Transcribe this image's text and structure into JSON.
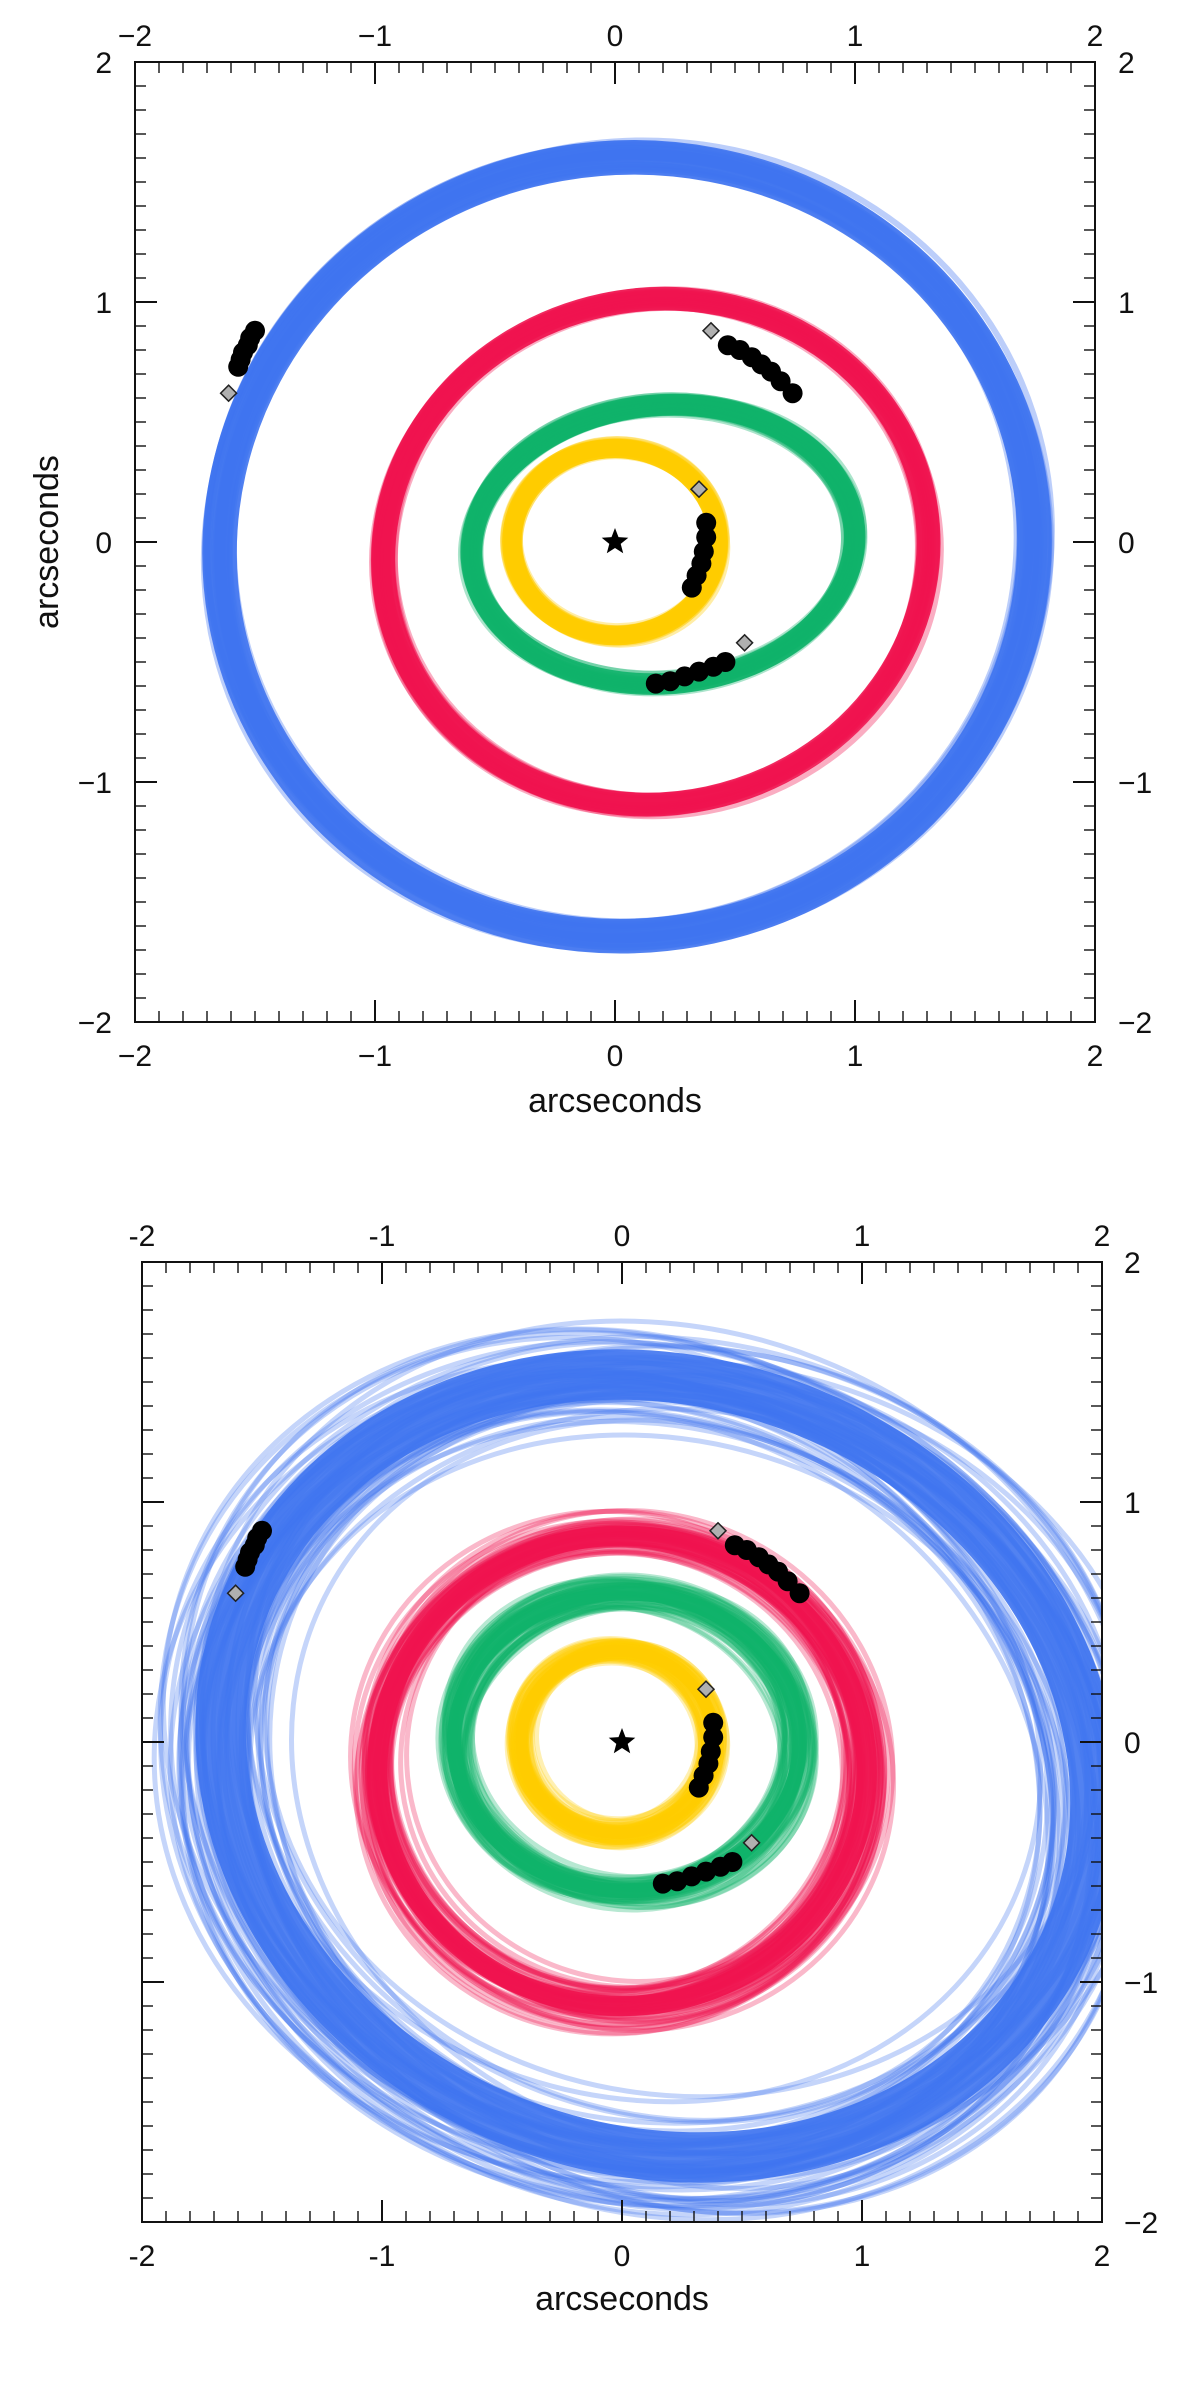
{
  "chart_data": [
    {
      "type": "scatter",
      "title": "",
      "xlabel": "arcseconds",
      "ylabel": "arcseconds",
      "xlim": [
        -2,
        2
      ],
      "ylim": [
        -2,
        2
      ],
      "ticks": [
        "−2",
        "−1",
        "0",
        "1",
        "2"
      ],
      "right_ticks": [
        "2",
        "1",
        "0",
        "−1",
        "−2"
      ],
      "star": {
        "x": 0,
        "y": 0
      },
      "colors": {
        "b": "#3f74f0",
        "c": "#f0134f",
        "d": "#0fb26a",
        "e": "#ffcc00"
      },
      "orbits": [
        {
          "planet": "b",
          "color": "#3f74f0",
          "cx": 0.05,
          "cy": -0.02,
          "rx": 1.7,
          "ry": 1.62,
          "tilt": -10,
          "width": 0.16
        },
        {
          "planet": "c",
          "color": "#f0134f",
          "cx": 0.17,
          "cy": -0.04,
          "rx": 1.14,
          "ry": 1.05,
          "tilt": -12,
          "width": 0.11
        },
        {
          "planet": "d",
          "color": "#0fb26a",
          "cx": 0.2,
          "cy": -0.01,
          "rx": 0.8,
          "ry": 0.58,
          "tilt": -5,
          "width": 0.1
        },
        {
          "planet": "e",
          "color": "#ffcc00",
          "cx": 0.0,
          "cy": 0.0,
          "rx": 0.43,
          "ry": 0.39,
          "tilt": 0,
          "width": 0.09
        }
      ],
      "points": [
        {
          "x": -1.5,
          "y": 0.88
        },
        {
          "x": -1.52,
          "y": 0.85
        },
        {
          "x": -1.53,
          "y": 0.82
        },
        {
          "x": -1.55,
          "y": 0.79
        },
        {
          "x": -1.56,
          "y": 0.76
        },
        {
          "x": -1.57,
          "y": 0.73
        },
        {
          "x": 0.47,
          "y": 0.82
        },
        {
          "x": 0.52,
          "y": 0.8
        },
        {
          "x": 0.57,
          "y": 0.77
        },
        {
          "x": 0.61,
          "y": 0.74
        },
        {
          "x": 0.65,
          "y": 0.71
        },
        {
          "x": 0.69,
          "y": 0.67
        },
        {
          "x": 0.74,
          "y": 0.62
        },
        {
          "x": 0.38,
          "y": 0.08
        },
        {
          "x": 0.38,
          "y": 0.02
        },
        {
          "x": 0.37,
          "y": -0.04
        },
        {
          "x": 0.36,
          "y": -0.09
        },
        {
          "x": 0.34,
          "y": -0.14
        },
        {
          "x": 0.32,
          "y": -0.19
        },
        {
          "x": 0.17,
          "y": -0.59
        },
        {
          "x": 0.23,
          "y": -0.58
        },
        {
          "x": 0.29,
          "y": -0.56
        },
        {
          "x": 0.35,
          "y": -0.54
        },
        {
          "x": 0.41,
          "y": -0.52
        },
        {
          "x": 0.46,
          "y": -0.5
        }
      ],
      "diamonds": [
        {
          "x": -1.61,
          "y": 0.62
        },
        {
          "x": 0.4,
          "y": 0.88
        },
        {
          "x": 0.35,
          "y": 0.22
        },
        {
          "x": 0.54,
          "y": -0.42
        }
      ]
    },
    {
      "type": "scatter",
      "title": "",
      "xlabel": "arcseconds",
      "ylabel": "",
      "xlim": [
        -2,
        2
      ],
      "ylim": [
        -2,
        2
      ],
      "ticks": [
        "-2",
        "-1",
        "0",
        "1",
        "2"
      ],
      "right_ticks": [
        "2",
        "1",
        "0",
        "−1",
        "−2"
      ],
      "star": {
        "x": 0,
        "y": 0
      },
      "colors": {
        "b": "#3f74f0",
        "c": "#f0134f",
        "d": "#0fb26a",
        "e": "#ffcc00"
      },
      "orbits": [
        {
          "planet": "b",
          "color": "#3f74f0",
          "cx": 0.15,
          "cy": -0.1,
          "rx": 1.85,
          "ry": 1.6,
          "tilt": 20,
          "width": 0.35
        },
        {
          "planet": "c",
          "color": "#f0134f",
          "cx": 0.0,
          "cy": -0.12,
          "rx": 1.02,
          "ry": 0.98,
          "tilt": 0,
          "width": 0.14
        },
        {
          "planet": "d",
          "color": "#0fb26a",
          "cx": 0.02,
          "cy": 0.0,
          "rx": 0.72,
          "ry": 0.62,
          "tilt": 0,
          "width": 0.1
        },
        {
          "planet": "e",
          "color": "#ffcc00",
          "cx": -0.02,
          "cy": 0.0,
          "rx": 0.4,
          "ry": 0.38,
          "tilt": 0,
          "width": 0.08
        }
      ],
      "points": [
        {
          "x": -1.5,
          "y": 0.88
        },
        {
          "x": -1.52,
          "y": 0.85
        },
        {
          "x": -1.53,
          "y": 0.82
        },
        {
          "x": -1.55,
          "y": 0.79
        },
        {
          "x": -1.56,
          "y": 0.76
        },
        {
          "x": -1.57,
          "y": 0.73
        },
        {
          "x": 0.47,
          "y": 0.82
        },
        {
          "x": 0.52,
          "y": 0.8
        },
        {
          "x": 0.57,
          "y": 0.77
        },
        {
          "x": 0.61,
          "y": 0.74
        },
        {
          "x": 0.65,
          "y": 0.71
        },
        {
          "x": 0.69,
          "y": 0.67
        },
        {
          "x": 0.74,
          "y": 0.62
        },
        {
          "x": 0.38,
          "y": 0.08
        },
        {
          "x": 0.38,
          "y": 0.02
        },
        {
          "x": 0.37,
          "y": -0.04
        },
        {
          "x": 0.36,
          "y": -0.09
        },
        {
          "x": 0.34,
          "y": -0.14
        },
        {
          "x": 0.32,
          "y": -0.19
        },
        {
          "x": 0.17,
          "y": -0.59
        },
        {
          "x": 0.23,
          "y": -0.58
        },
        {
          "x": 0.29,
          "y": -0.56
        },
        {
          "x": 0.35,
          "y": -0.54
        },
        {
          "x": 0.41,
          "y": -0.52
        },
        {
          "x": 0.46,
          "y": -0.5
        }
      ],
      "diamonds": [
        {
          "x": -1.61,
          "y": 0.62
        },
        {
          "x": 0.4,
          "y": 0.88
        },
        {
          "x": 0.35,
          "y": 0.22
        },
        {
          "x": 0.54,
          "y": -0.42
        }
      ]
    }
  ]
}
